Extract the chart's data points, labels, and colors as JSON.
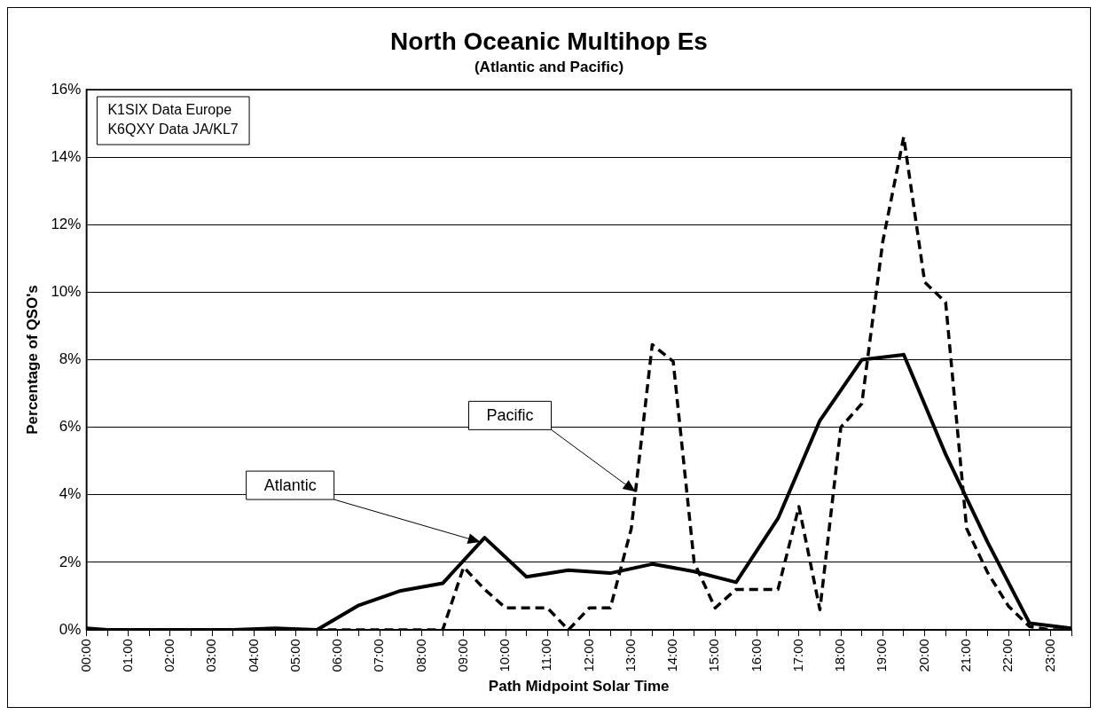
{
  "chart_data": {
    "type": "line",
    "title": "North Oceanic Multihop Es",
    "subtitle": "(Atlantic and Pacific)",
    "xlabel": "Path Midpoint Solar Time",
    "ylabel": "Percentage of QSO's",
    "xlim": [
      0,
      23.5
    ],
    "xticks": [
      {
        "value": 0,
        "label": "00:00"
      },
      {
        "value": 0.5,
        "label": null
      },
      {
        "value": 1,
        "label": "01:00"
      },
      {
        "value": 1.5,
        "label": null
      },
      {
        "value": 2,
        "label": "02:00"
      },
      {
        "value": 2.5,
        "label": null
      },
      {
        "value": 3,
        "label": "03:00"
      },
      {
        "value": 3.5,
        "label": null
      },
      {
        "value": 4,
        "label": "04:00"
      },
      {
        "value": 4.5,
        "label": null
      },
      {
        "value": 5,
        "label": "05:00"
      },
      {
        "value": 5.5,
        "label": null
      },
      {
        "value": 6,
        "label": "06:00"
      },
      {
        "value": 6.5,
        "label": null
      },
      {
        "value": 7,
        "label": "07:00"
      },
      {
        "value": 7.5,
        "label": null
      },
      {
        "value": 8,
        "label": "08:00"
      },
      {
        "value": 8.5,
        "label": null
      },
      {
        "value": 9,
        "label": "09:00"
      },
      {
        "value": 9.5,
        "label": null
      },
      {
        "value": 10,
        "label": "10:00"
      },
      {
        "value": 10.5,
        "label": null
      },
      {
        "value": 11,
        "label": "11:00"
      },
      {
        "value": 11.5,
        "label": null
      },
      {
        "value": 12,
        "label": "12:00"
      },
      {
        "value": 12.5,
        "label": null
      },
      {
        "value": 13,
        "label": "13:00"
      },
      {
        "value": 13.5,
        "label": null
      },
      {
        "value": 14,
        "label": "14:00"
      },
      {
        "value": 14.5,
        "label": null
      },
      {
        "value": 15,
        "label": "15:00"
      },
      {
        "value": 15.5,
        "label": null
      },
      {
        "value": 16,
        "label": "16:00"
      },
      {
        "value": 16.5,
        "label": null
      },
      {
        "value": 17,
        "label": "17:00"
      },
      {
        "value": 17.5,
        "label": null
      },
      {
        "value": 18,
        "label": "18:00"
      },
      {
        "value": 18.5,
        "label": null
      },
      {
        "value": 19,
        "label": "19:00"
      },
      {
        "value": 19.5,
        "label": null
      },
      {
        "value": 20,
        "label": "20:00"
      },
      {
        "value": 20.5,
        "label": null
      },
      {
        "value": 21,
        "label": "21:00"
      },
      {
        "value": 21.5,
        "label": null
      },
      {
        "value": 22,
        "label": "22:00"
      },
      {
        "value": 22.5,
        "label": null
      },
      {
        "value": 23,
        "label": "23:00"
      },
      {
        "value": 23.5,
        "label": null
      }
    ],
    "ylim": [
      0,
      16
    ],
    "yticks": [
      {
        "value": 0,
        "label": "0%"
      },
      {
        "value": 2,
        "label": "2%"
      },
      {
        "value": 4,
        "label": "4%"
      },
      {
        "value": 6,
        "label": "6%"
      },
      {
        "value": 8,
        "label": "8%"
      },
      {
        "value": 10,
        "label": "10%"
      },
      {
        "value": 12,
        "label": "12%"
      },
      {
        "value": 14,
        "label": "14%"
      },
      {
        "value": 16,
        "label": "16%"
      }
    ],
    "grid": "y",
    "legend": false,
    "marker": "none",
    "series": [
      {
        "color": "#000000",
        "line_style": "solid",
        "x": [
          0,
          0.5,
          1.5,
          2.5,
          3.5,
          4.5,
          5.5,
          6.5,
          7.5,
          8.5,
          9.5,
          10.5,
          11.5,
          12.5,
          13.5,
          14.5,
          15.5,
          16.5,
          17.5,
          18.5,
          19.5,
          20.5,
          21.5,
          22.5,
          23.5
        ],
        "values": [
          0.05,
          0,
          0,
          0,
          0,
          0.05,
          0,
          0.73,
          1.16,
          1.38,
          2.73,
          1.57,
          1.77,
          1.68,
          1.95,
          1.73,
          1.41,
          3.3,
          6.2,
          8.0,
          8.15,
          5.2,
          2.6,
          0.2,
          0.05
        ]
      },
      {
        "color": "#000000",
        "line_style": "dashed",
        "x": [
          0,
          6,
          8.5,
          9,
          9.5,
          10,
          10.5,
          11,
          11.5,
          12,
          12.5,
          13,
          13.5,
          14,
          14.5,
          15,
          15.5,
          16,
          16.5,
          17,
          17.5,
          18,
          18.5,
          19,
          19.5,
          20,
          20.5,
          21,
          21.5,
          22,
          22.5,
          23,
          23.5
        ],
        "values": [
          0,
          0,
          0,
          1.86,
          1.2,
          0.65,
          0.65,
          0.65,
          0,
          0.65,
          0.65,
          3.0,
          8.45,
          7.95,
          2.0,
          0.65,
          1.2,
          1.2,
          1.2,
          3.65,
          0.6,
          6.0,
          6.7,
          11.5,
          14.6,
          10.3,
          9.7,
          3.0,
          1.7,
          0.7,
          0.1,
          0,
          0
        ]
      }
    ],
    "annotations": [
      "K1SIX Data Europe",
      "K6QXY Data JA/KL7",
      {
        "text": "Atlantic",
        "x": 9.4,
        "y": 2.6
      },
      {
        "text": "Pacific",
        "x": 13.1,
        "y": 4.09
      }
    ]
  }
}
